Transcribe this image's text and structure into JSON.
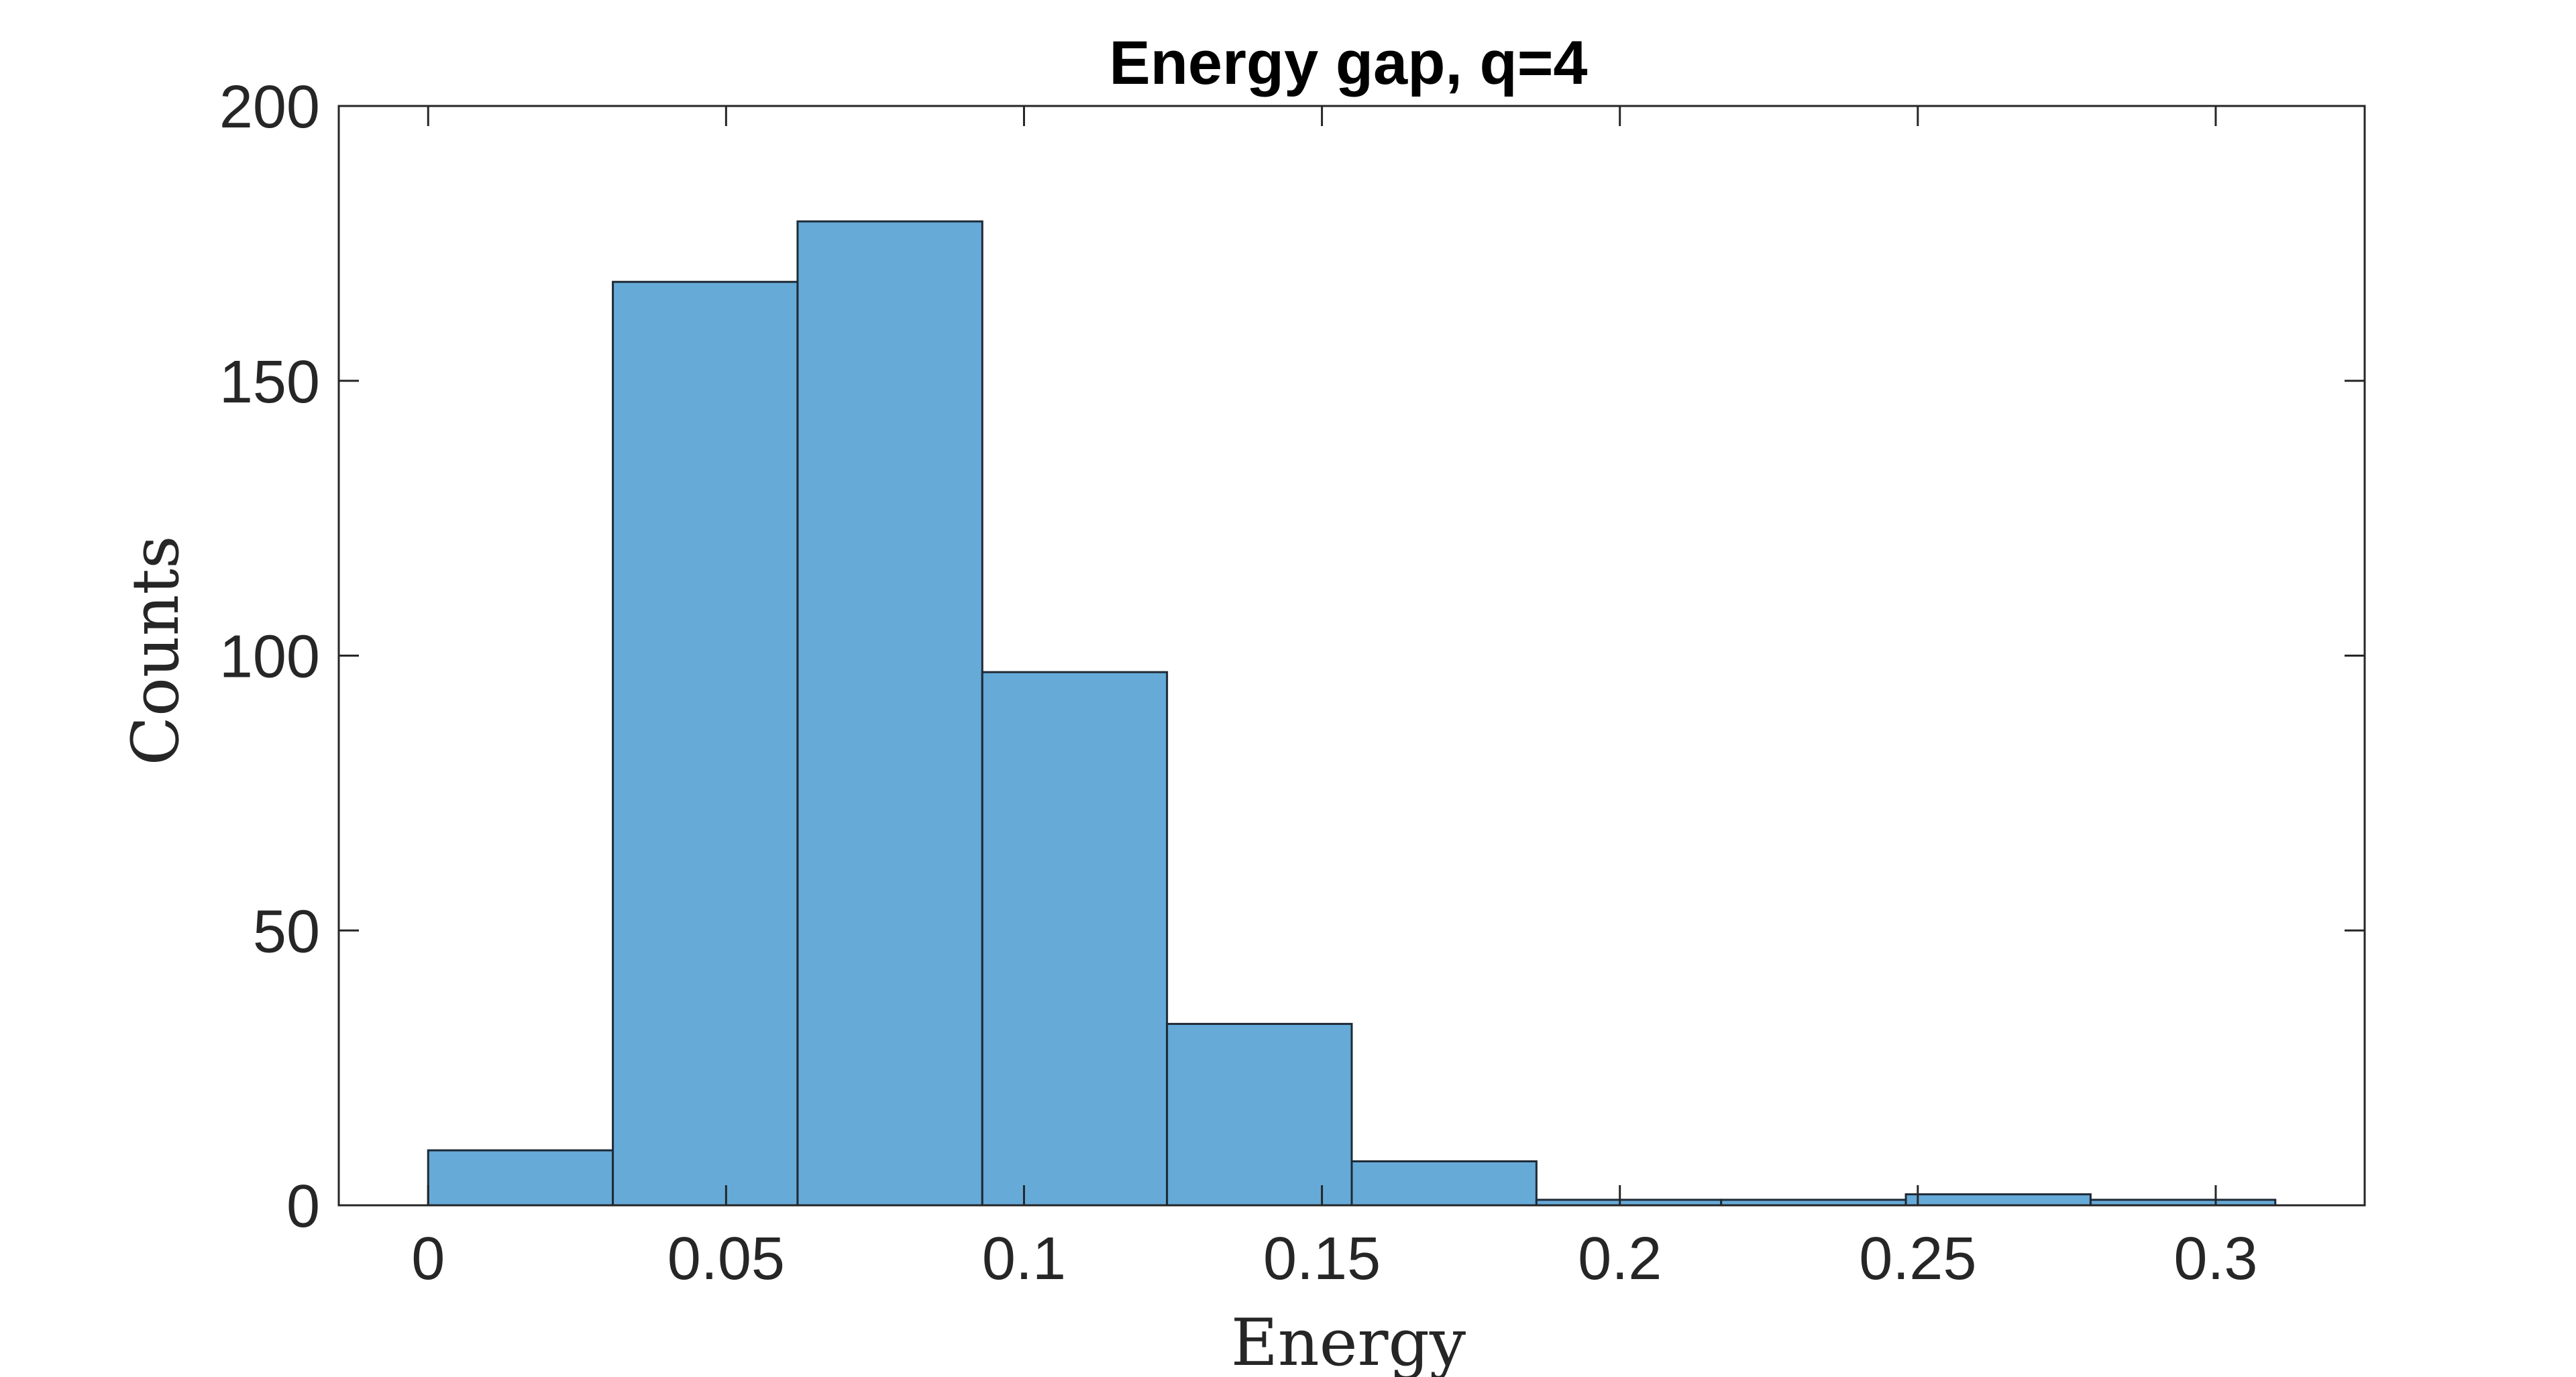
{
  "chart_data": {
    "type": "bar",
    "title": "Energy gap, q=4",
    "xlabel": "Energy",
    "ylabel": "Counts",
    "xlim": [
      -0.015,
      0.325
    ],
    "ylim": [
      0,
      200
    ],
    "grid": false,
    "xticks": [
      0,
      0.05,
      0.1,
      0.15,
      0.2,
      0.25,
      0.3
    ],
    "xtick_labels": [
      "0",
      "0.05",
      "0.1",
      "0.15",
      "0.2",
      "0.25",
      "0.3"
    ],
    "yticks": [
      0,
      50,
      100,
      150,
      200
    ],
    "ytick_labels": [
      "0",
      "50",
      "100",
      "150",
      "200"
    ],
    "bin_edges": [
      0,
      0.031,
      0.062,
      0.093,
      0.124,
      0.155,
      0.186,
      0.217,
      0.248,
      0.279,
      0.31
    ],
    "values": [
      10,
      168,
      179,
      97,
      33,
      8,
      1,
      1,
      2,
      1
    ],
    "colors": {
      "bar_fill": "#66aad8",
      "bar_edge": "#1e2a36",
      "axes": "#262626"
    }
  }
}
